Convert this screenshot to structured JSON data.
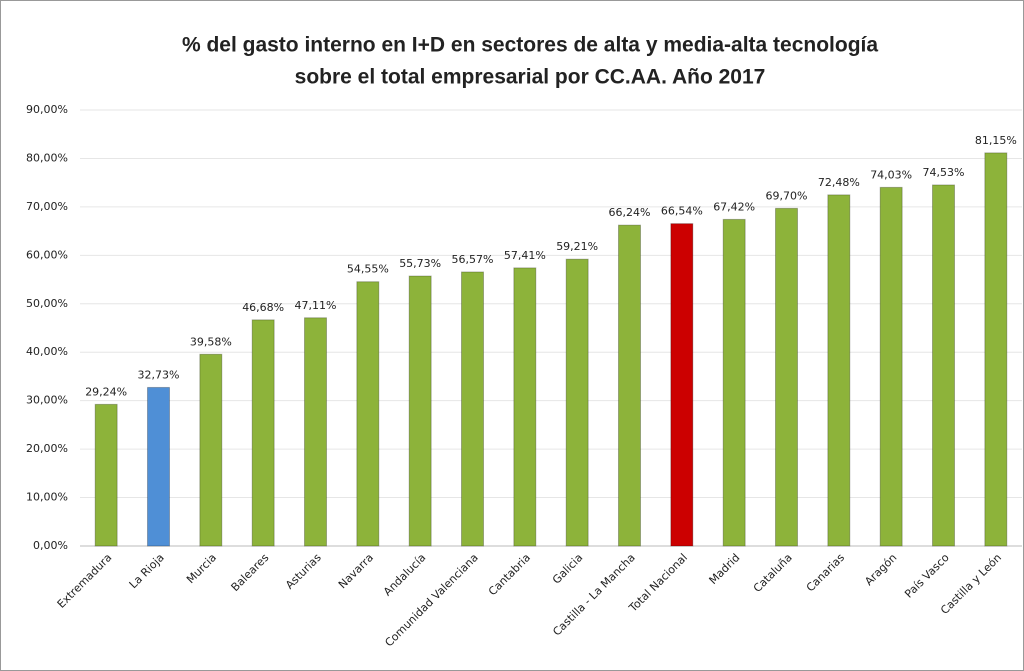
{
  "chart_data": {
    "type": "bar",
    "title": [
      "% del gasto interno en I+D en sectores de alta y media-alta tecnología",
      "sobre el total empresarial por CC.AA. Año 2017"
    ],
    "categories": [
      "Extremadura",
      "La Rioja",
      "Murcia",
      "Baleares",
      "Asturias",
      "Navarra",
      "Andalucía",
      "Comunidad Valenciana",
      "Cantabria",
      "Galicia",
      "Castilla - La Mancha",
      "Total Nacional",
      "Madrid",
      "Cataluña",
      "Canarias",
      "Aragón",
      "País Vasco",
      "Castilla y León"
    ],
    "values": [
      29.24,
      32.73,
      39.58,
      46.68,
      47.11,
      54.55,
      55.73,
      56.57,
      57.41,
      59.21,
      66.24,
      66.54,
      67.42,
      69.7,
      72.48,
      74.03,
      74.53,
      81.15
    ],
    "value_labels": [
      "29,24%",
      "32,73%",
      "39,58%",
      "46,68%",
      "47,11%",
      "54,55%",
      "55,73%",
      "56,57%",
      "57,41%",
      "59,21%",
      "66,24%",
      "66,54%",
      "67,42%",
      "69,70%",
      "72,48%",
      "74,03%",
      "74,53%",
      "81,15%"
    ],
    "colors": [
      "#8db33a",
      "#4f8fd6",
      "#8db33a",
      "#8db33a",
      "#8db33a",
      "#8db33a",
      "#8db33a",
      "#8db33a",
      "#8db33a",
      "#8db33a",
      "#8db33a",
      "#cc0000",
      "#8db33a",
      "#8db33a",
      "#8db33a",
      "#8db33a",
      "#8db33a",
      "#8db33a"
    ],
    "ylim": [
      0,
      90
    ],
    "yticks": [
      {
        "value": 0,
        "label": "0,00%"
      },
      {
        "value": 10,
        "label": "10,00%"
      },
      {
        "value": 20,
        "label": "20,00%"
      },
      {
        "value": 30,
        "label": "30,00%"
      },
      {
        "value": 40,
        "label": "40,00%"
      },
      {
        "value": 50,
        "label": "50,00%"
      },
      {
        "value": 60,
        "label": "60,00%"
      },
      {
        "value": 70,
        "label": "70,00%"
      },
      {
        "value": 80,
        "label": "80,00%"
      },
      {
        "value": 90,
        "label": "90,00%"
      }
    ],
    "grid": true
  }
}
